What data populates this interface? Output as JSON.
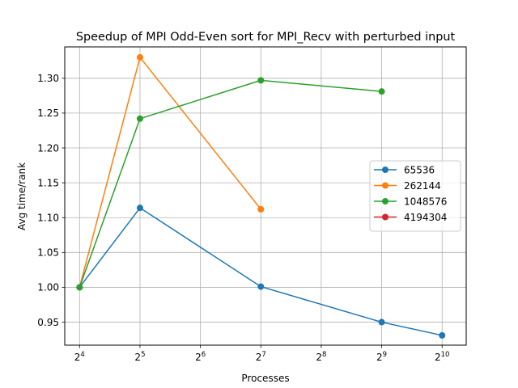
{
  "chart_data": {
    "type": "line",
    "title": "Speedup of MPI Odd-Even sort for MPI_Recv with perturbed input",
    "xlabel": "Processes",
    "ylabel": "Avg time/rank",
    "x_scale": "log2",
    "xlim": [
      13.5,
      1350
    ],
    "ylim": [
      0.917,
      1.345
    ],
    "x_ticks": [
      {
        "value": 16,
        "base": "2",
        "exp": "4"
      },
      {
        "value": 32,
        "base": "2",
        "exp": "5"
      },
      {
        "value": 64,
        "base": "2",
        "exp": "6"
      },
      {
        "value": 128,
        "base": "2",
        "exp": "7"
      },
      {
        "value": 256,
        "base": "2",
        "exp": "8"
      },
      {
        "value": 512,
        "base": "2",
        "exp": "9"
      },
      {
        "value": 1024,
        "base": "2",
        "exp": "10"
      }
    ],
    "y_ticks": [
      "0.95",
      "1.00",
      "1.05",
      "1.10",
      "1.15",
      "1.20",
      "1.25",
      "1.30"
    ],
    "grid": true,
    "legend_position": "center-right",
    "series": [
      {
        "name": "65536",
        "color": "#1f77b4",
        "x": [
          16,
          32,
          128,
          512,
          1024
        ],
        "y": [
          1.0,
          1.114,
          1.001,
          0.95,
          0.931
        ]
      },
      {
        "name": "262144",
        "color": "#ff7f0e",
        "x": [
          16,
          32,
          128
        ],
        "y": [
          1.0,
          1.33,
          1.112
        ]
      },
      {
        "name": "1048576",
        "color": "#2ca02c",
        "x": [
          16,
          32,
          128,
          512
        ],
        "y": [
          1.0,
          1.242,
          1.297,
          1.281
        ]
      },
      {
        "name": "4194304",
        "color": "#d62728",
        "x": [],
        "y": []
      }
    ]
  }
}
